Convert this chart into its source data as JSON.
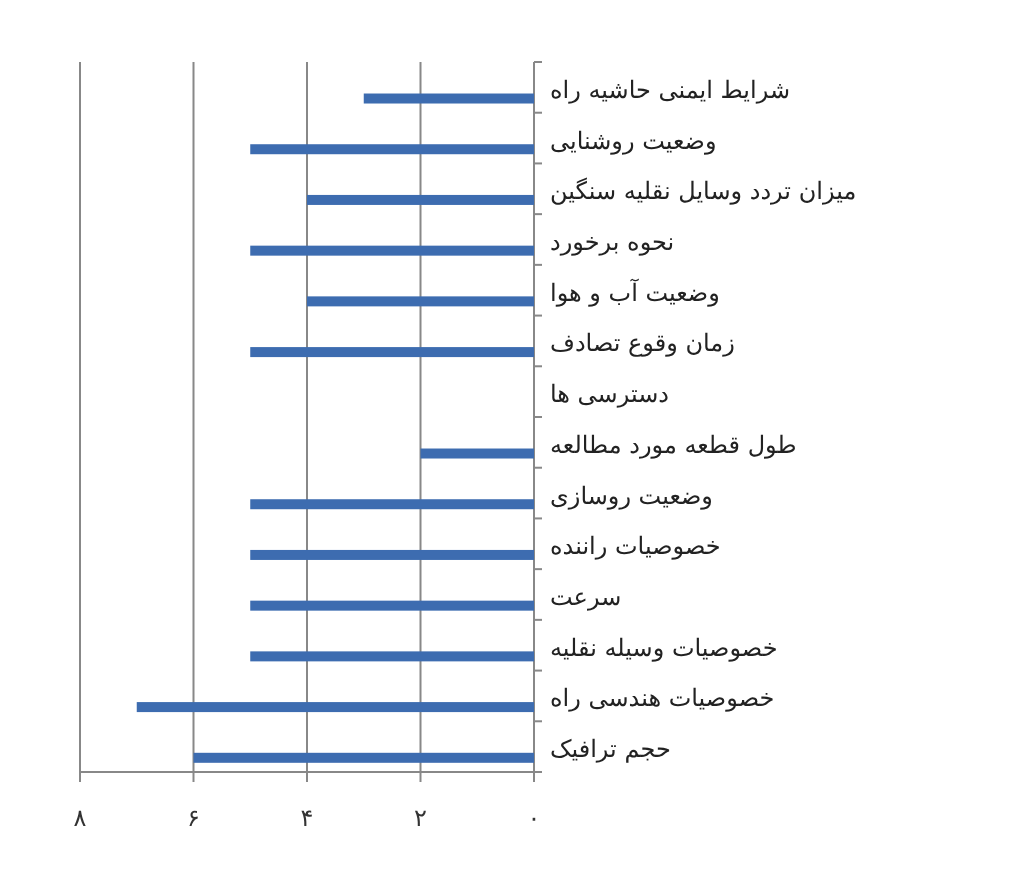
{
  "chart_data": {
    "type": "bar",
    "orientation": "horizontal",
    "categories": [
      "شرایط ایمنی حاشیه راه",
      "وضعیت روشنایی",
      "میزان تردد وسایل نقلیه سنگین",
      "نحوه برخورد",
      "وضعیت آب و هوا",
      "زمان وقوع تصادف",
      "دسترسی ها",
      "طول قطعه مورد مطالعه",
      "وضعیت روسازی",
      "خصوصیات راننده",
      "سرعت",
      "خصوصیات وسیله نقلیه",
      "خصوصیات هندسی راه",
      "حجم ترافیک"
    ],
    "values": [
      3,
      5,
      4,
      5,
      4,
      5,
      0,
      2,
      5,
      5,
      5,
      5,
      7,
      6
    ],
    "color": "#3d6cb0",
    "xlim": [
      8,
      0
    ],
    "xticks": [
      {
        "value": 8,
        "label": "۸"
      },
      {
        "value": 6,
        "label": "۶"
      },
      {
        "value": 4,
        "label": "۴"
      },
      {
        "value": 2,
        "label": "۲"
      },
      {
        "value": 0,
        "label": "۰"
      }
    ],
    "grid": "x"
  }
}
